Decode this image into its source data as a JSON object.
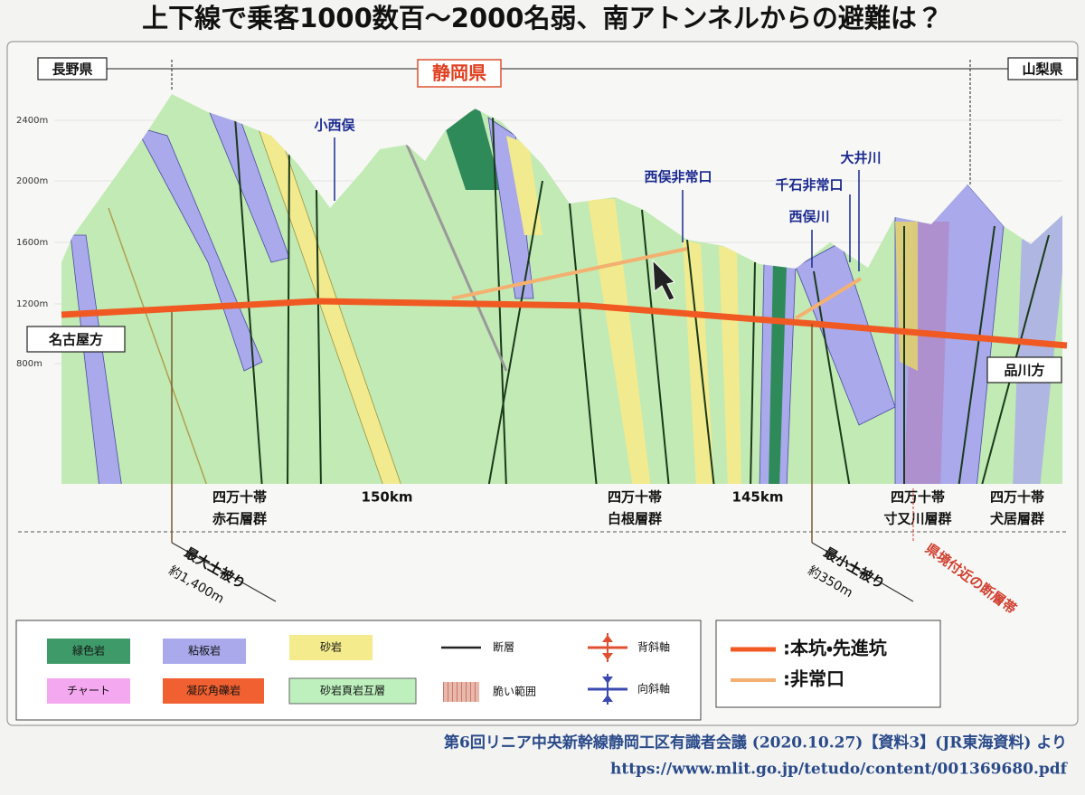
{
  "title": "上下線で乗客1000数百～2000名弱、南アトンネルからの避難は？",
  "prefectures": [
    "長野県",
    "静岡県",
    "山梨県"
  ],
  "elevation_labels": [
    "2400m",
    "2000m",
    "1600m",
    "1200m",
    "800m"
  ],
  "directions": [
    "名古屋方",
    "品川方"
  ],
  "places": [
    "小西俣",
    "西俣非常口",
    "千石非常口",
    "大井川",
    "西俣川"
  ],
  "distance_labels": [
    "150km",
    "145km"
  ],
  "formations": [
    {
      "line1": "四万十帯",
      "line2": "赤石層群"
    },
    {
      "line1": "四万十帯",
      "line2": "白根層群"
    },
    {
      "line1": "四万十帯",
      "line2": "寸又川層群"
    },
    {
      "line1": "四万十帯",
      "line2": "犬居層群"
    }
  ],
  "overburden": [
    {
      "label": "最大土被り",
      "value": "約1,400m"
    },
    {
      "label": "最小土被り",
      "value": "約350m"
    }
  ],
  "fault_zone": "県境付近の断層帯",
  "legend": {
    "rocks": [
      "緑色岩",
      "粘板岩",
      "砂岩",
      "チャート",
      "凝灰角礫岩",
      "砂岩頁岩互層"
    ],
    "symbols": [
      "断層",
      "背斜軸",
      "脆い範囲",
      "向斜軸"
    ],
    "tunnels": [
      ":本坑・先進坑",
      ":非常口"
    ]
  },
  "source": [
    "第6回リニア中央新幹線静岡工区有識者会議 (2020.10.27)【資料3】(JR東海資料) より",
    "https://www.mlit.go.jp/tetudo/content/001369680.pdf"
  ]
}
